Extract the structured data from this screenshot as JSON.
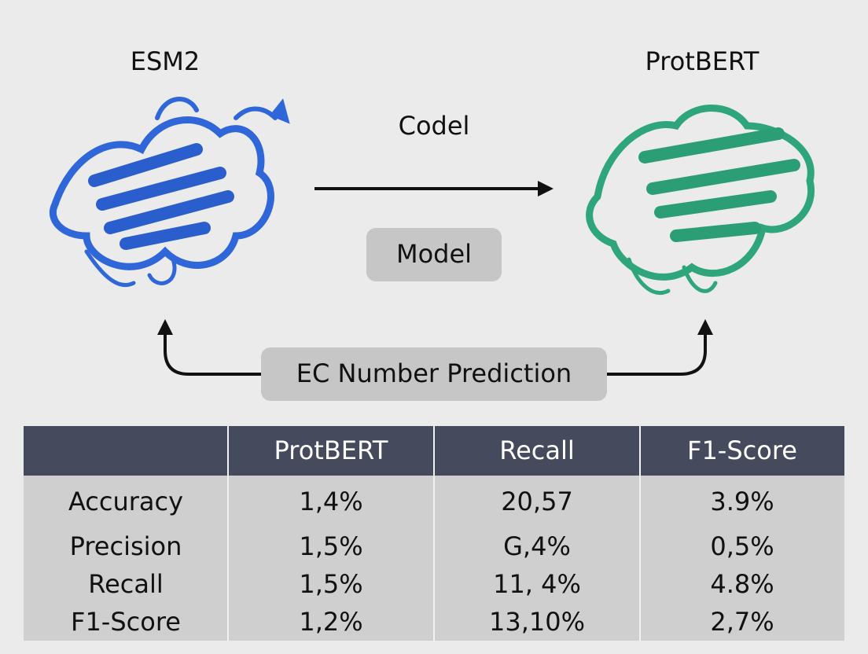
{
  "labels": {
    "left_model": "ESM2",
    "right_model": "ProtBERT",
    "arrow_label": "Codel",
    "model_box": "Model",
    "task_box": "EC Number Prediction"
  },
  "table": {
    "header": [
      "ProtBERT",
      "Recall",
      "F1-Score"
    ],
    "rows": [
      [
        "Accuracy",
        "1,4%",
        "20,57",
        "3.9%"
      ],
      [
        "Precision",
        "1,5%",
        "G,4%",
        "0,5%"
      ],
      [
        "Recall",
        "1,5%",
        "11, 4%",
        "4.8%"
      ],
      [
        "F1-Score",
        "1,2%",
        "13,10%",
        "2,7%"
      ]
    ]
  }
}
